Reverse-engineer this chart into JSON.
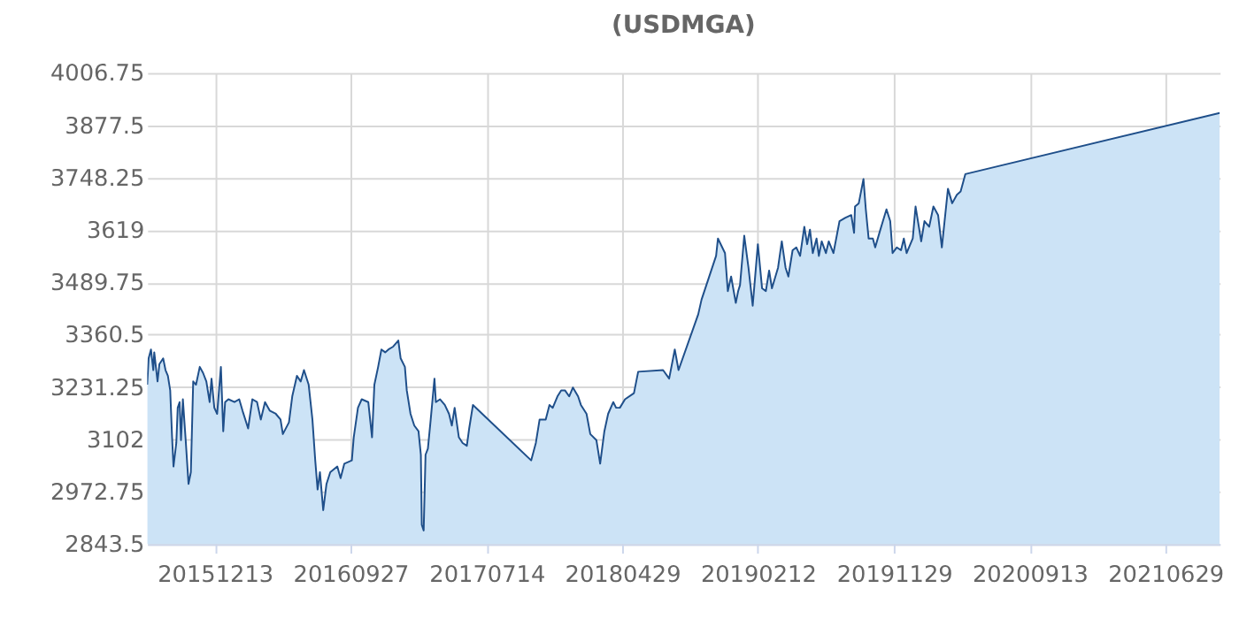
{
  "chart_data": {
    "type": "area",
    "title": "(USDMGA)",
    "x": [
      "2015-07-22",
      "2015-07-25",
      "2015-07-30",
      "2015-08-04",
      "2015-08-06",
      "2015-08-13",
      "2015-08-17",
      "2015-08-25",
      "2015-08-30",
      "2015-09-04",
      "2015-09-09",
      "2015-09-13",
      "2015-09-16",
      "2015-09-22",
      "2015-09-25",
      "2015-09-29",
      "2015-10-02",
      "2015-10-06",
      "2015-10-12",
      "2015-10-18",
      "2015-10-23",
      "2015-10-28",
      "2015-11-03",
      "2015-11-11",
      "2015-11-18",
      "2015-11-25",
      "2015-12-02",
      "2015-12-06",
      "2015-12-12",
      "2015-12-18",
      "2015-12-26",
      "2015-12-31",
      "2016-01-04",
      "2016-01-11",
      "2016-01-24",
      "2016-02-03",
      "2016-02-10",
      "2016-02-22",
      "2016-03-02",
      "2016-03-12",
      "2016-03-20",
      "2016-03-29",
      "2016-04-08",
      "2016-04-21",
      "2016-05-01",
      "2016-05-06",
      "2016-05-19",
      "2016-05-26",
      "2016-06-05",
      "2016-06-13",
      "2016-06-20",
      "2016-06-30",
      "2016-07-08",
      "2016-07-14",
      "2016-07-19",
      "2016-07-24",
      "2016-07-31",
      "2016-08-07",
      "2016-08-15",
      "2016-08-30",
      "2016-09-06",
      "2016-09-14",
      "2016-09-30",
      "2016-10-04",
      "2016-10-13",
      "2016-10-21",
      "2016-11-04",
      "2016-11-12",
      "2016-11-17",
      "2016-11-25",
      "2016-12-02",
      "2016-12-10",
      "2016-12-17",
      "2016-12-27",
      "2017-01-07",
      "2017-01-12",
      "2017-01-21",
      "2017-01-25",
      "2017-02-02",
      "2017-02-10",
      "2017-02-19",
      "2017-02-24",
      "2017-02-26",
      "2017-03-02",
      "2017-03-06",
      "2017-03-11",
      "2017-03-17",
      "2017-03-25",
      "2017-03-28",
      "2017-04-06",
      "2017-04-16",
      "2017-04-25",
      "2017-05-01",
      "2017-05-07",
      "2017-05-16",
      "2017-05-24",
      "2017-06-02",
      "2017-06-07",
      "2017-06-15",
      "2017-10-17",
      "2017-10-27",
      "2017-11-04",
      "2017-11-17",
      "2017-11-25",
      "2017-12-02",
      "2017-12-12",
      "2017-12-20",
      "2017-12-28",
      "2018-01-06",
      "2018-01-14",
      "2018-01-25",
      "2018-01-31",
      "2018-02-12",
      "2018-02-20",
      "2018-03-05",
      "2018-03-13",
      "2018-03-22",
      "2018-03-30",
      "2018-04-10",
      "2018-04-16",
      "2018-04-24",
      "2018-05-05",
      "2018-05-24",
      "2018-06-02",
      "2018-07-25",
      "2018-08-07",
      "2018-08-19",
      "2018-08-27",
      "2018-10-08",
      "2018-10-15",
      "2018-11-15",
      "2018-11-19",
      "2018-12-04",
      "2018-12-10",
      "2018-12-17",
      "2018-12-27",
      "2019-01-01",
      "2019-01-05",
      "2019-01-14",
      "2019-01-23",
      "2019-02-01",
      "2019-02-12",
      "2019-02-21",
      "2019-03-01",
      "2019-03-08",
      "2019-03-14",
      "2019-03-27",
      "2019-04-04",
      "2019-04-12",
      "2019-04-18",
      "2019-04-27",
      "2019-05-05",
      "2019-05-13",
      "2019-05-22",
      "2019-05-28",
      "2019-06-03",
      "2019-06-09",
      "2019-06-17",
      "2019-06-22",
      "2019-06-28",
      "2019-07-07",
      "2019-07-13",
      "2019-07-23",
      "2019-08-05",
      "2019-08-17",
      "2019-08-30",
      "2019-09-05",
      "2019-09-07",
      "2019-09-15",
      "2019-09-25",
      "2019-09-30",
      "2019-10-06",
      "2019-10-15",
      "2019-10-20",
      "2019-10-31",
      "2019-11-13",
      "2019-11-21",
      "2019-11-26",
      "2019-12-05",
      "2019-12-14",
      "2019-12-20",
      "2019-12-26",
      "2020-01-08",
      "2020-01-14",
      "2020-01-26",
      "2020-02-02",
      "2020-02-12",
      "2020-02-21",
      "2020-03-02",
      "2020-03-10",
      "2020-03-23",
      "2020-04-01",
      "2020-04-11",
      "2020-04-19",
      "2020-04-29",
      "2021-10-23"
    ],
    "series": [
      {
        "color": "#cce3f6",
        "values": [
          3237,
          3302,
          3324,
          3273,
          3317,
          3245,
          3288,
          3302,
          3273,
          3259,
          3223,
          3107,
          3035,
          3093,
          3180,
          3194,
          3100,
          3201,
          3100,
          2992,
          3021,
          3245,
          3237,
          3281,
          3266,
          3245,
          3194,
          3252,
          3180,
          3165,
          3281,
          3122,
          3194,
          3201,
          3194,
          3201,
          3173,
          3129,
          3201,
          3194,
          3151,
          3194,
          3173,
          3165,
          3151,
          3115,
          3144,
          3208,
          3259,
          3245,
          3273,
          3237,
          3151,
          3050,
          2978,
          3021,
          2927,
          2992,
          3021,
          3035,
          3006,
          3042,
          3050,
          3107,
          3180,
          3201,
          3194,
          3107,
          3237,
          3281,
          3324,
          3317,
          3324,
          3331,
          3346,
          3302,
          3281,
          3223,
          3165,
          3136,
          3122,
          3064,
          2891,
          2877,
          3064,
          3079,
          3151,
          3252,
          3194,
          3201,
          3187,
          3165,
          3136,
          3180,
          3107,
          3093,
          3086,
          3129,
          3187,
          3050,
          3093,
          3151,
          3151,
          3187,
          3180,
          3208,
          3223,
          3223,
          3208,
          3230,
          3208,
          3187,
          3165,
          3115,
          3100,
          3042,
          3122,
          3165,
          3194,
          3180,
          3180,
          3201,
          3216,
          3269,
          3273,
          3252,
          3324,
          3273,
          3411,
          3447,
          3555,
          3598,
          3562,
          3468,
          3504,
          3439,
          3468,
          3483,
          3605,
          3526,
          3432,
          3584,
          3475,
          3468,
          3519,
          3475,
          3526,
          3591,
          3526,
          3504,
          3569,
          3576,
          3555,
          3627,
          3584,
          3620,
          3562,
          3598,
          3555,
          3591,
          3562,
          3591,
          3562,
          3641,
          3649,
          3656,
          3612,
          3677,
          3685,
          3745,
          3670,
          3598,
          3598,
          3576,
          3620,
          3670,
          3641,
          3562,
          3576,
          3569,
          3598,
          3562,
          3598,
          3677,
          3591,
          3641,
          3627,
          3677,
          3656,
          3576,
          3721,
          3685,
          3706,
          3714,
          3757,
          3908
        ]
      }
    ],
    "xlim": [
      "2015-07-22",
      "2021-10-23"
    ],
    "xticks": [
      {
        "value": "2015-12-13",
        "label": "20151213"
      },
      {
        "value": "2016-09-27",
        "label": "20160927"
      },
      {
        "value": "2017-07-14",
        "label": "20170714"
      },
      {
        "value": "2018-04-29",
        "label": "20180429"
      },
      {
        "value": "2019-02-12",
        "label": "20190212"
      },
      {
        "value": "2019-11-29",
        "label": "20191129"
      },
      {
        "value": "2020-09-13",
        "label": "20200913"
      },
      {
        "value": "2021-06-29",
        "label": "20210629"
      }
    ],
    "ylim": [
      2843.5,
      4006.75
    ],
    "yticks": [
      2843.5,
      2972.75,
      3102,
      3231.25,
      3360.5,
      3489.75,
      3619,
      3748.25,
      3877.5,
      4006.75
    ],
    "grid": true
  }
}
